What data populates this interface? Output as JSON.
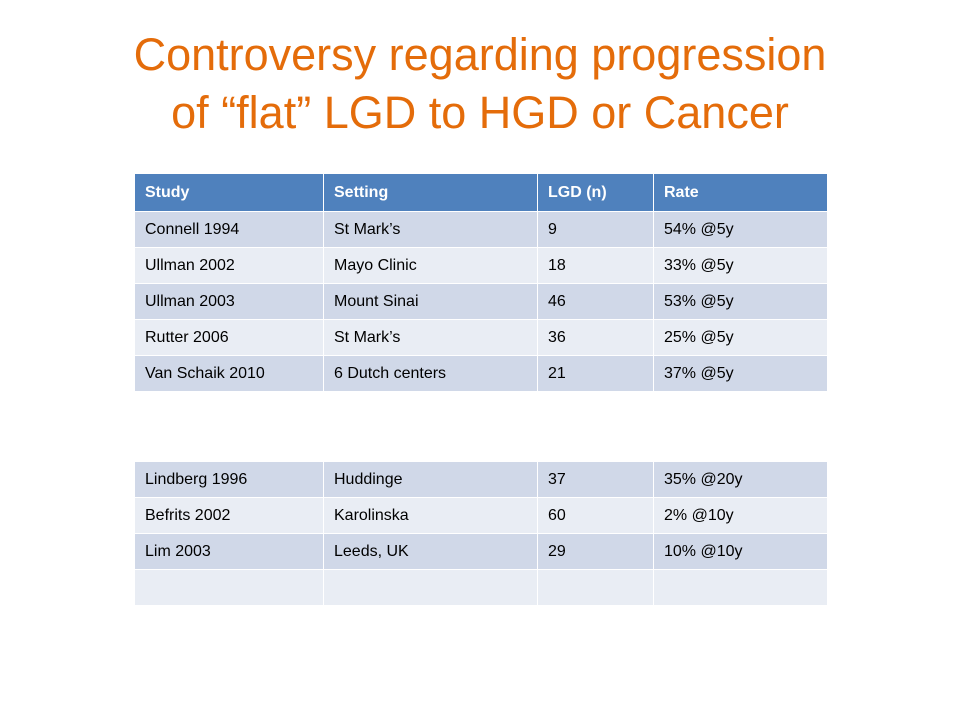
{
  "title": {
    "line1": "Controversy regarding progression",
    "line2": "of “flat” LGD to HGD or Cancer"
  },
  "table_top": {
    "headers": [
      "Study",
      "Setting",
      "LGD (n)",
      "Rate"
    ],
    "rows": [
      [
        "Connell 1994",
        "St Mark’s",
        "9",
        "54% @5y"
      ],
      [
        "Ullman 2002",
        "Mayo Clinic",
        "18",
        "33% @5y"
      ],
      [
        "Ullman 2003",
        "Mount Sinai",
        "46",
        "53% @5y"
      ],
      [
        "Rutter 2006",
        "St Mark’s",
        "36",
        "25% @5y"
      ],
      [
        "Van Schaik 2010",
        "6 Dutch centers",
        "21",
        "37% @5y"
      ]
    ]
  },
  "table_bottom": {
    "rows": [
      [
        "Lindberg 1996",
        "Huddinge",
        "37",
        "35% @20y"
      ],
      [
        "Befrits 2002",
        "Karolinska",
        "60",
        "2% @10y"
      ],
      [
        "Lim 2003",
        "Leeds, UK",
        "29",
        "10% @10y"
      ],
      [
        "",
        "",
        "",
        ""
      ]
    ]
  },
  "colors": {
    "title": "#e46c0a",
    "header_bg": "#4f81bd",
    "row_dark": "#d0d8e8",
    "row_light": "#e9edf4"
  }
}
